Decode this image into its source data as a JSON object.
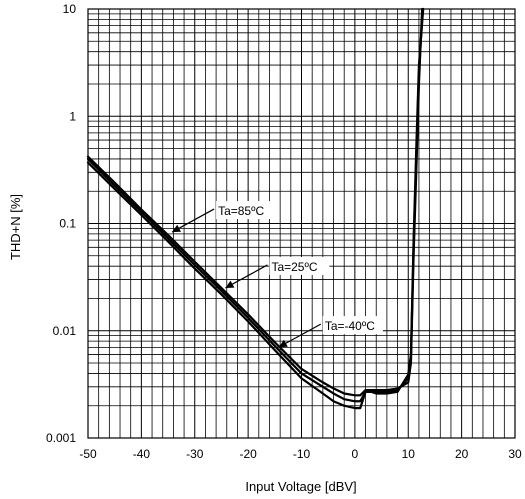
{
  "chart_data": {
    "type": "line",
    "title": "",
    "xlabel": "Input Voltage [dBV]",
    "ylabel": "THD+N [%]",
    "xlim": [
      -50,
      30
    ],
    "ylim": [
      0.001,
      10
    ],
    "y_scale": "log",
    "grid": true,
    "x_ticks": [
      -50,
      -40,
      -30,
      -20,
      -10,
      0,
      10,
      20,
      30
    ],
    "y_ticks": [
      {
        "value": 0.001,
        "label": "0.001"
      },
      {
        "value": 0.01,
        "label": "0.01"
      },
      {
        "value": 0.1,
        "label": "0.1"
      },
      {
        "value": 1,
        "label": "1"
      },
      {
        "value": 10,
        "label": "10"
      }
    ],
    "series": [
      {
        "name": "Ta=85ºC",
        "color": "#000000",
        "x": [
          -50,
          -45,
          -40,
          -35,
          -30,
          -25,
          -20,
          -15,
          -10,
          -6,
          -4,
          -2,
          0,
          1,
          2,
          3,
          4,
          5,
          6,
          8,
          10,
          10.5,
          11,
          11.5,
          12,
          12.6
        ],
        "y": [
          0.42,
          0.24,
          0.135,
          0.078,
          0.044,
          0.025,
          0.0142,
          0.0078,
          0.0044,
          0.0033,
          0.0029,
          0.0026,
          0.0025,
          0.0025,
          0.0028,
          0.0028,
          0.0028,
          0.0028,
          0.0028,
          0.0029,
          0.0033,
          0.005,
          0.05,
          0.3,
          2.0,
          10
        ]
      },
      {
        "name": "Ta=25ºC",
        "color": "#000000",
        "x": [
          -50,
          -45,
          -40,
          -35,
          -30,
          -25,
          -20,
          -15,
          -10,
          -6,
          -4,
          -2,
          0,
          1,
          2,
          3,
          4,
          5,
          6,
          8,
          10,
          10.5,
          11,
          11.5,
          12,
          12.7
        ],
        "y": [
          0.4,
          0.225,
          0.128,
          0.073,
          0.041,
          0.0235,
          0.0132,
          0.0072,
          0.004,
          0.003,
          0.0026,
          0.0023,
          0.0022,
          0.0022,
          0.0027,
          0.0027,
          0.0027,
          0.0027,
          0.0027,
          0.0028,
          0.0036,
          0.0055,
          0.06,
          0.4,
          2.5,
          10
        ]
      },
      {
        "name": "Ta=-40ºC",
        "color": "#000000",
        "x": [
          -50,
          -45,
          -40,
          -35,
          -30,
          -25,
          -20,
          -15,
          -10,
          -6,
          -4,
          -2,
          0,
          1,
          2,
          3,
          4,
          5,
          6,
          8,
          10,
          10.5,
          11,
          11.5,
          12,
          12.8
        ],
        "y": [
          0.37,
          0.21,
          0.12,
          0.068,
          0.038,
          0.0218,
          0.0122,
          0.0066,
          0.0036,
          0.0026,
          0.0022,
          0.002,
          0.0019,
          0.0019,
          0.0027,
          0.0027,
          0.0026,
          0.0026,
          0.0026,
          0.0027,
          0.0039,
          0.006,
          0.07,
          0.5,
          3.0,
          10
        ]
      }
    ],
    "annotations": [
      {
        "text": "Ta=85ºC",
        "series": 0,
        "arrow_to": {
          "x": -35,
          "y": 0.078
        }
      },
      {
        "text": "Ta=25ºC",
        "series": 1,
        "arrow_to": {
          "x": -25,
          "y": 0.0235
        }
      },
      {
        "text": "Ta=-40ºC",
        "series": 2,
        "arrow_to": {
          "x": -15,
          "y": 0.0066
        }
      }
    ]
  }
}
